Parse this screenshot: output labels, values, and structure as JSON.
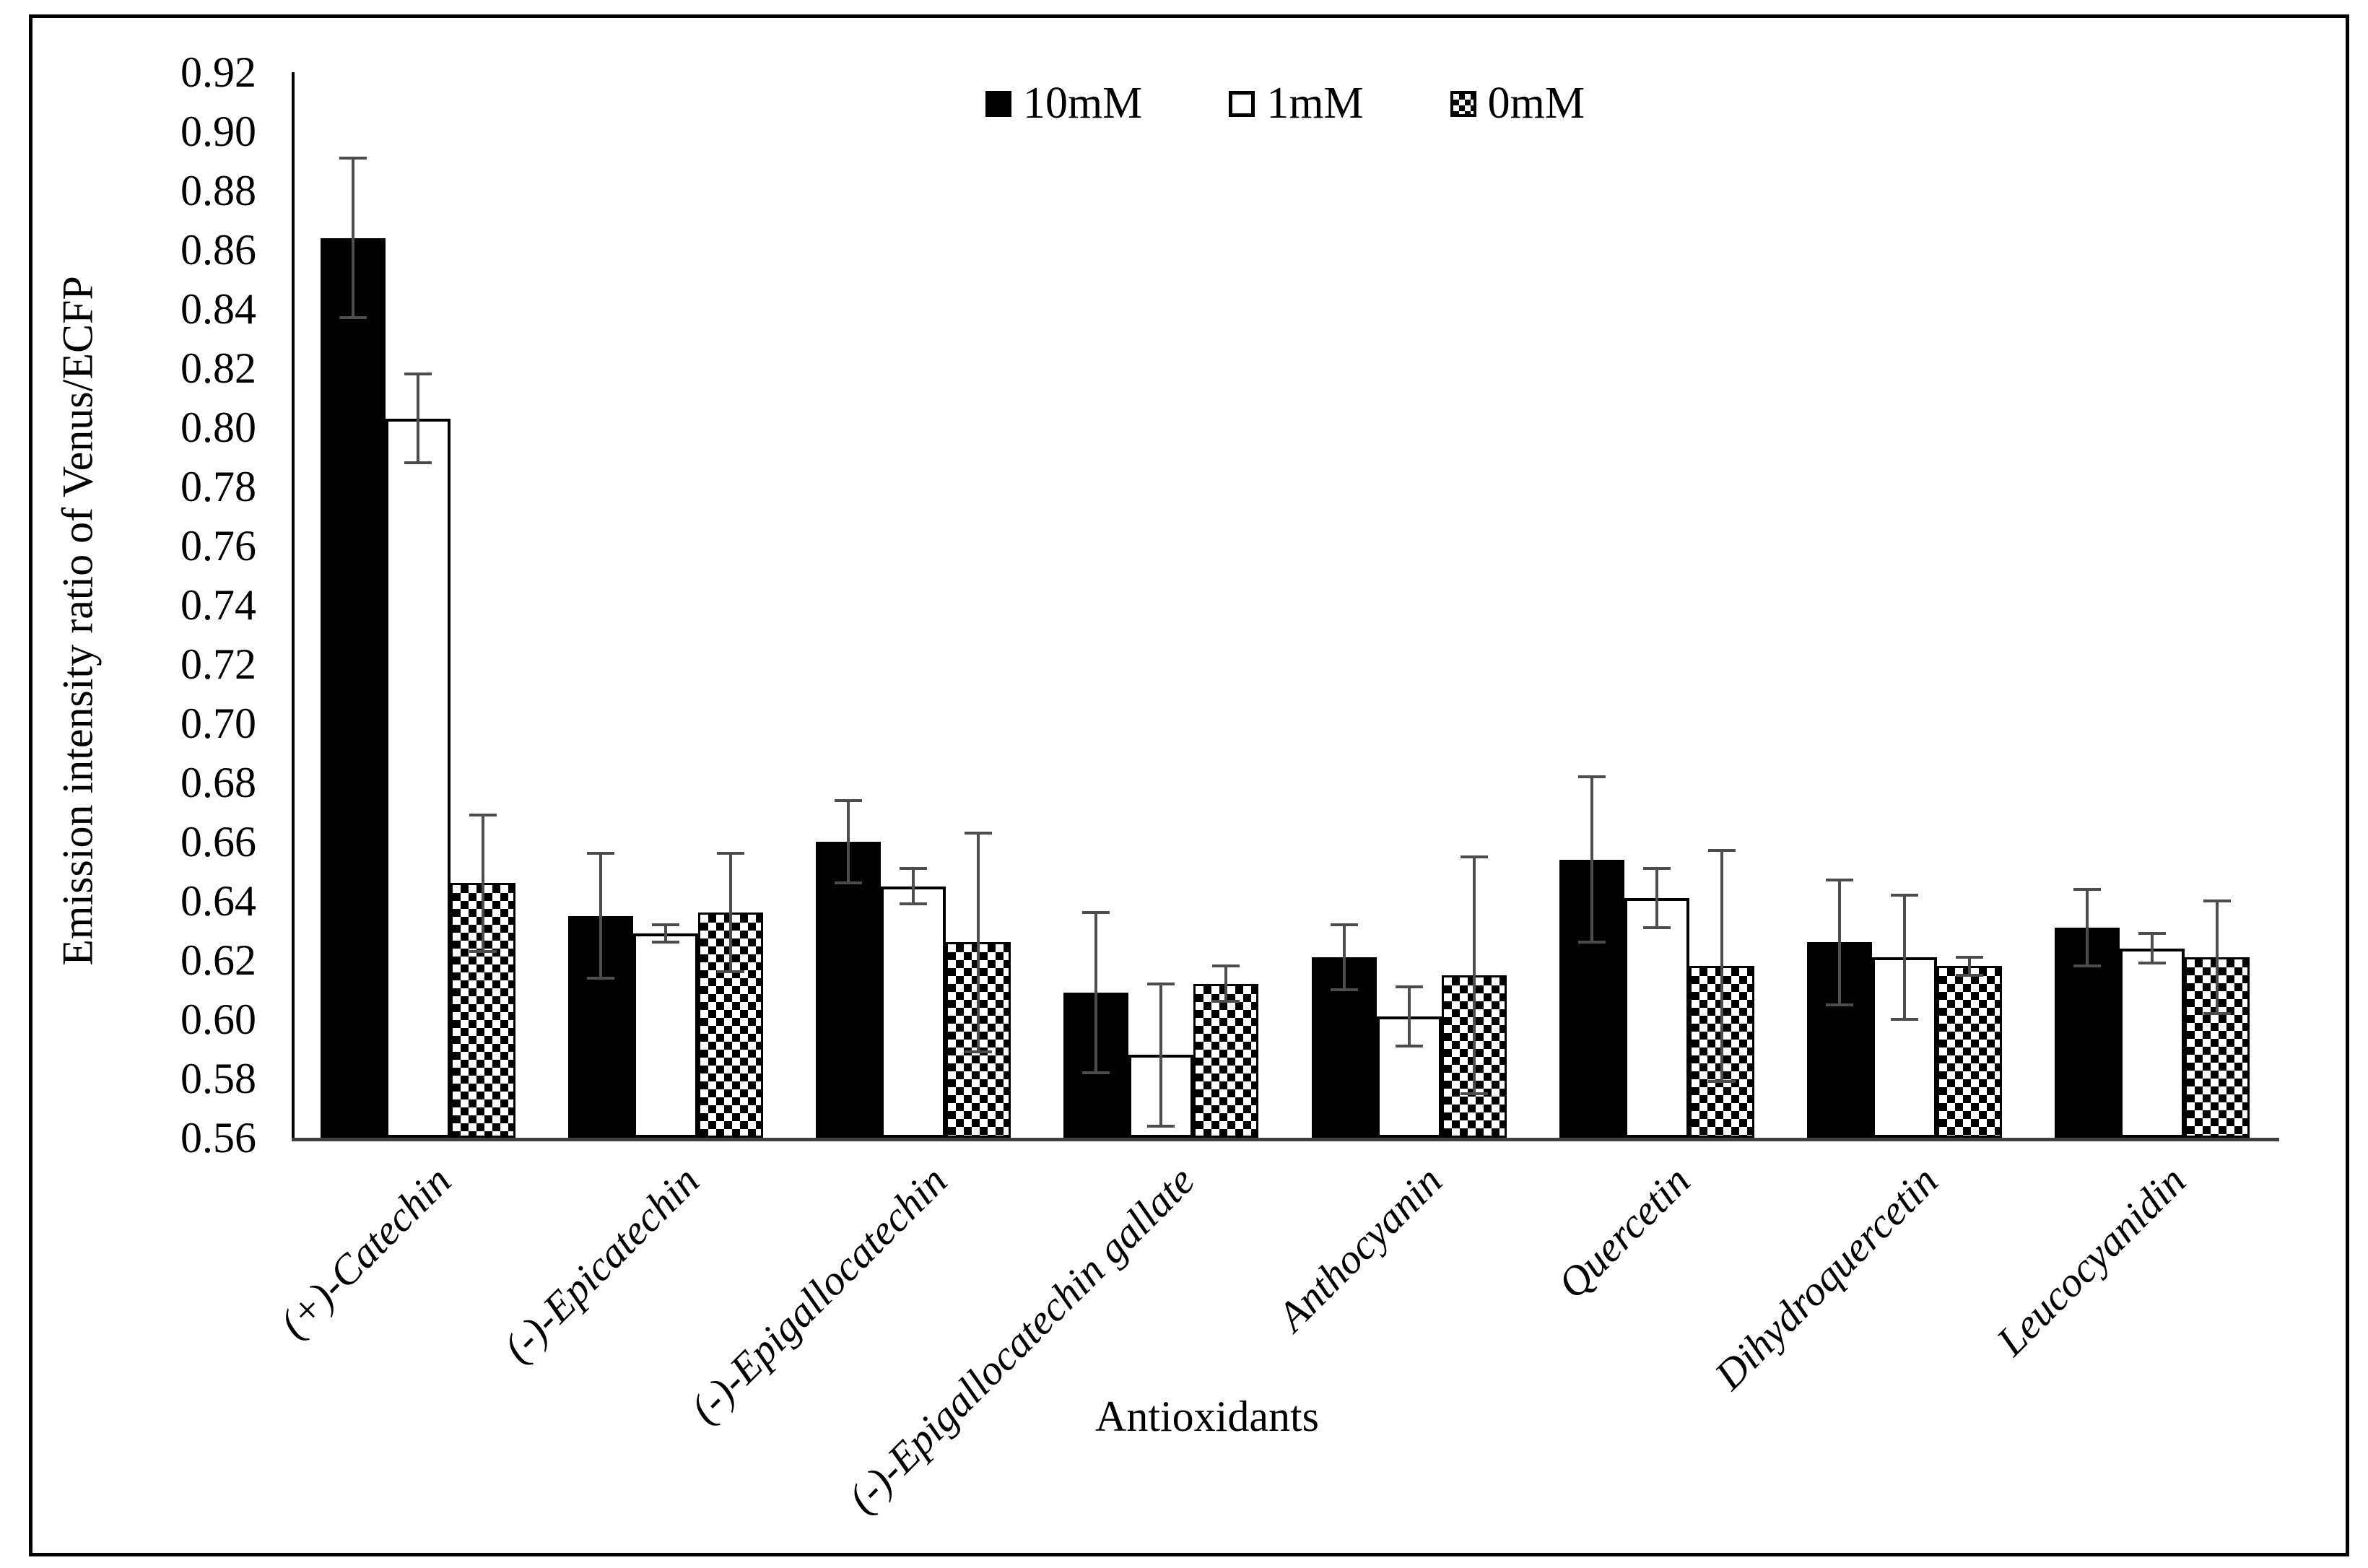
{
  "legend": {
    "items": [
      {
        "label": "10mM",
        "swatch": "black-filled-square"
      },
      {
        "label": "1mM",
        "swatch": "white-outline-square"
      },
      {
        "label": "0mM",
        "swatch": "checkerboard-square"
      }
    ]
  },
  "chart_data": {
    "type": "bar",
    "title": "",
    "xlabel": "Antioxidants",
    "ylabel": "Emission intensity ratio of Venus/ECFP",
    "ylim": [
      0.56,
      0.92
    ],
    "ytick_step": 0.02,
    "yticks": [
      "0.92",
      "0.90",
      "0.88",
      "0.86",
      "0.84",
      "0.82",
      "0.80",
      "0.78",
      "0.76",
      "0.74",
      "0.72",
      "0.70",
      "0.68",
      "0.66",
      "0.64",
      "0.62",
      "0.60",
      "0.58",
      "0.56"
    ],
    "grid": false,
    "legend_position": "top-center",
    "error_bars": "symmetric, plus-minus values in errors arrays",
    "categories": [
      "(+)-Catechin",
      "(-)-Epicatechin",
      "(-)-Epigallocatechin",
      "(-)-Epigallocatechin gallate",
      "Anthocyanin",
      "Quercetin",
      "Dihydroquercetin",
      "Leucocyanidin"
    ],
    "series": [
      {
        "name": "10mM",
        "fill": "solid-black",
        "values": [
          0.864,
          0.635,
          0.66,
          0.609,
          0.621,
          0.654,
          0.626,
          0.631
        ],
        "errors": [
          0.027,
          0.021,
          0.014,
          0.027,
          0.011,
          0.028,
          0.021,
          0.013
        ]
      },
      {
        "name": "1mM",
        "fill": "white-outline",
        "values": [
          0.803,
          0.629,
          0.645,
          0.588,
          0.601,
          0.641,
          0.621,
          0.624
        ],
        "errors": [
          0.015,
          0.003,
          0.006,
          0.024,
          0.01,
          0.01,
          0.021,
          0.005
        ]
      },
      {
        "name": "0mM",
        "fill": "checkerboard",
        "values": [
          0.646,
          0.636,
          0.626,
          0.612,
          0.615,
          0.618,
          0.618,
          0.621
        ],
        "errors": [
          0.023,
          0.02,
          0.037,
          0.006,
          0.04,
          0.039,
          0.003,
          0.019
        ]
      }
    ],
    "colors": {
      "bar_black": "#000000",
      "bar_white": "#ffffff",
      "outline": "#000000",
      "error_bar": "#4d4d4d",
      "axis": "#3f3f3f"
    }
  }
}
